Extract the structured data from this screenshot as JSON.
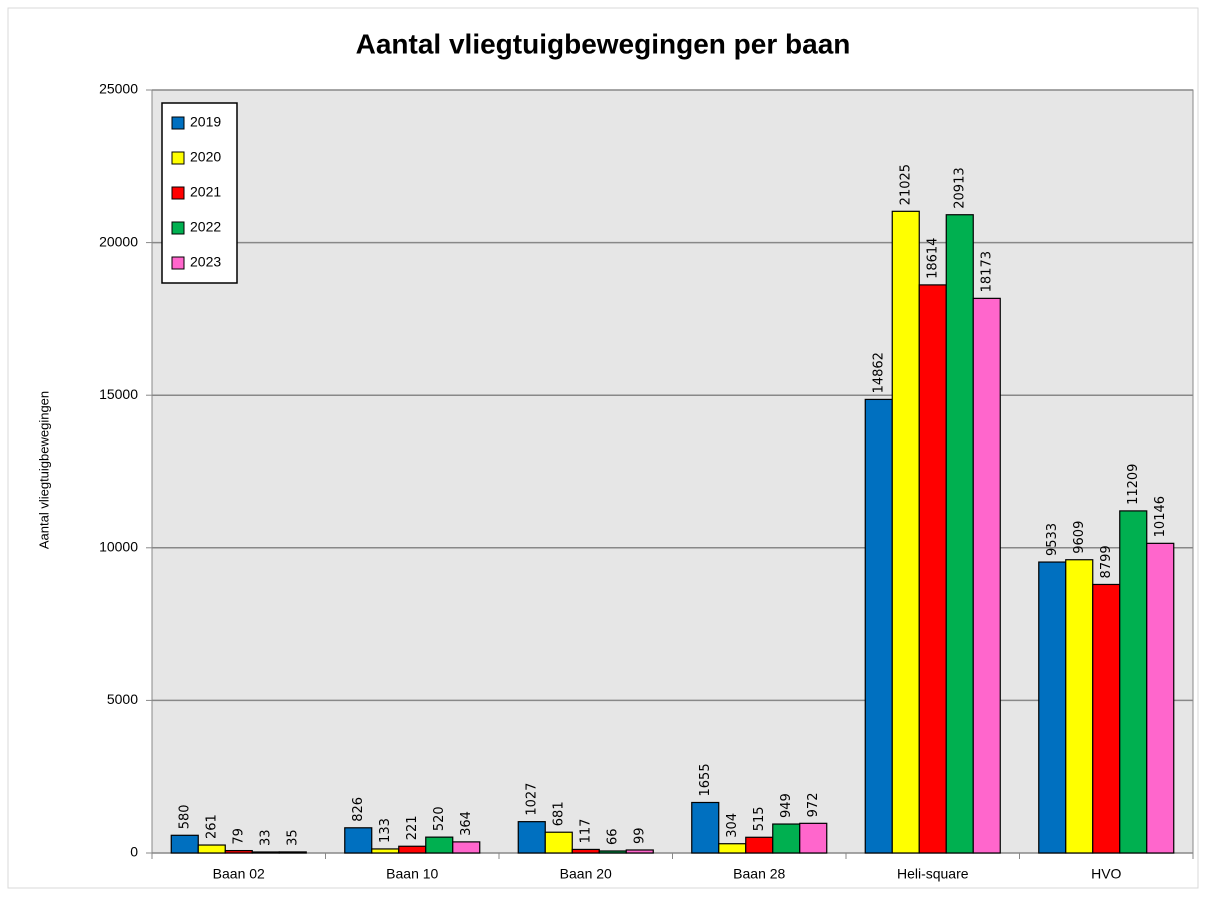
{
  "chart_data": {
    "type": "bar",
    "title": "Aantal vliegtuigbewegingen per baan",
    "y_label": "Aantal vliegtuigbewegingen",
    "categories": [
      "Baan 02",
      "Baan 10",
      "Baan 20",
      "Baan 28",
      "Heli-square",
      "HVO"
    ],
    "series": [
      {
        "name": "2019",
        "color": "#0070c0",
        "values": [
          580,
          826,
          1027,
          1655,
          14862,
          9533
        ]
      },
      {
        "name": "2020",
        "color": "#ffff00",
        "values": [
          261,
          133,
          681,
          304,
          21025,
          9609
        ]
      },
      {
        "name": "2021",
        "color": "#ff0000",
        "values": [
          79,
          221,
          117,
          515,
          18614,
          8799
        ]
      },
      {
        "name": "2022",
        "color": "#00b050",
        "values": [
          33,
          520,
          66,
          949,
          20913,
          11209
        ]
      },
      {
        "name": "2023",
        "color": "#ff66cc",
        "values": [
          35,
          364,
          99,
          972,
          18173,
          10146
        ]
      }
    ],
    "ylim": [
      0,
      25000
    ],
    "yticks": [
      0,
      5000,
      10000,
      15000,
      20000,
      25000
    ],
    "grid": true,
    "legend": "top-left"
  }
}
